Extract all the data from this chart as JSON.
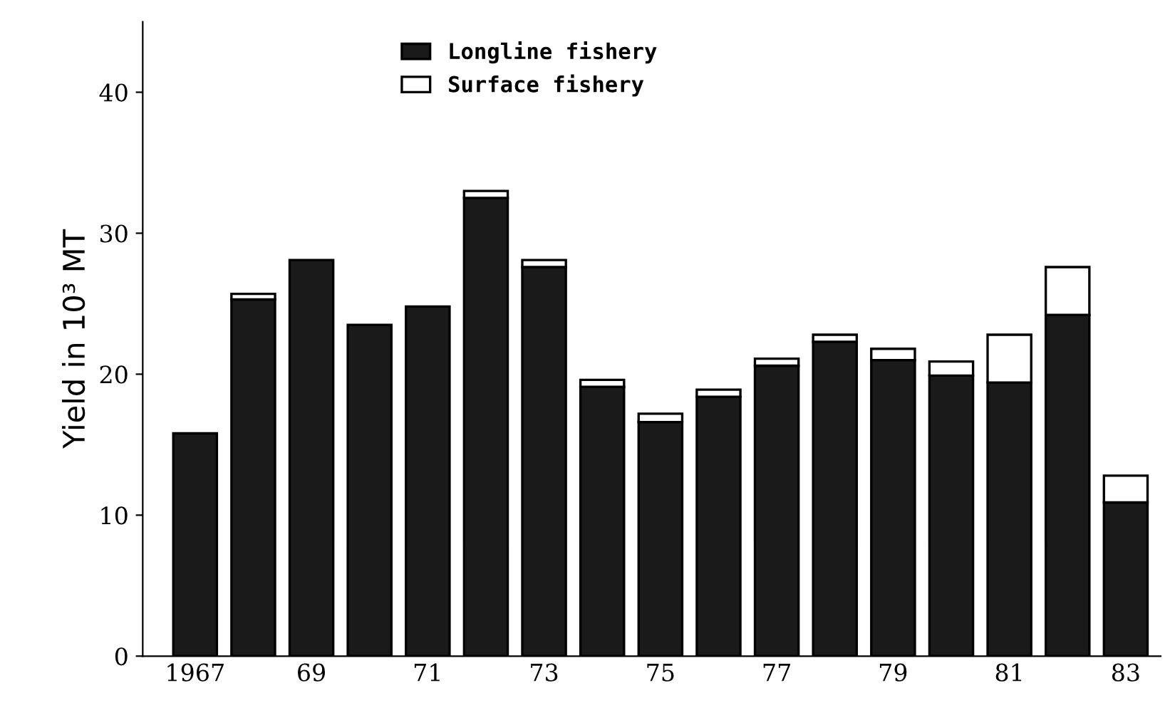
{
  "chart_data": {
    "type": "bar",
    "stacked": true,
    "ylabel": "Yield in 10³ MT",
    "categories": [
      "1967",
      null,
      "69",
      null,
      "71",
      null,
      "73",
      null,
      "75",
      null,
      "77",
      null,
      "79",
      null,
      "81",
      null,
      "83"
    ],
    "series": [
      {
        "name": "Longline fishery",
        "color": "#1a1a1a",
        "values": [
          15.8,
          25.3,
          28.1,
          23.5,
          24.8,
          32.5,
          27.6,
          19.1,
          16.6,
          18.4,
          20.6,
          22.3,
          21.0,
          19.9,
          19.4,
          24.2,
          10.9
        ]
      },
      {
        "name": "Surface fishery",
        "color": "#ffffff",
        "values": [
          null,
          0.4,
          null,
          null,
          null,
          0.5,
          0.5,
          0.5,
          0.6,
          0.5,
          0.5,
          0.5,
          0.8,
          1.0,
          3.4,
          3.4,
          1.9
        ]
      }
    ],
    "ylim": [
      0,
      45
    ],
    "yticks": [
      0,
      10,
      20,
      30,
      40
    ],
    "grid": false,
    "legend": "top"
  }
}
